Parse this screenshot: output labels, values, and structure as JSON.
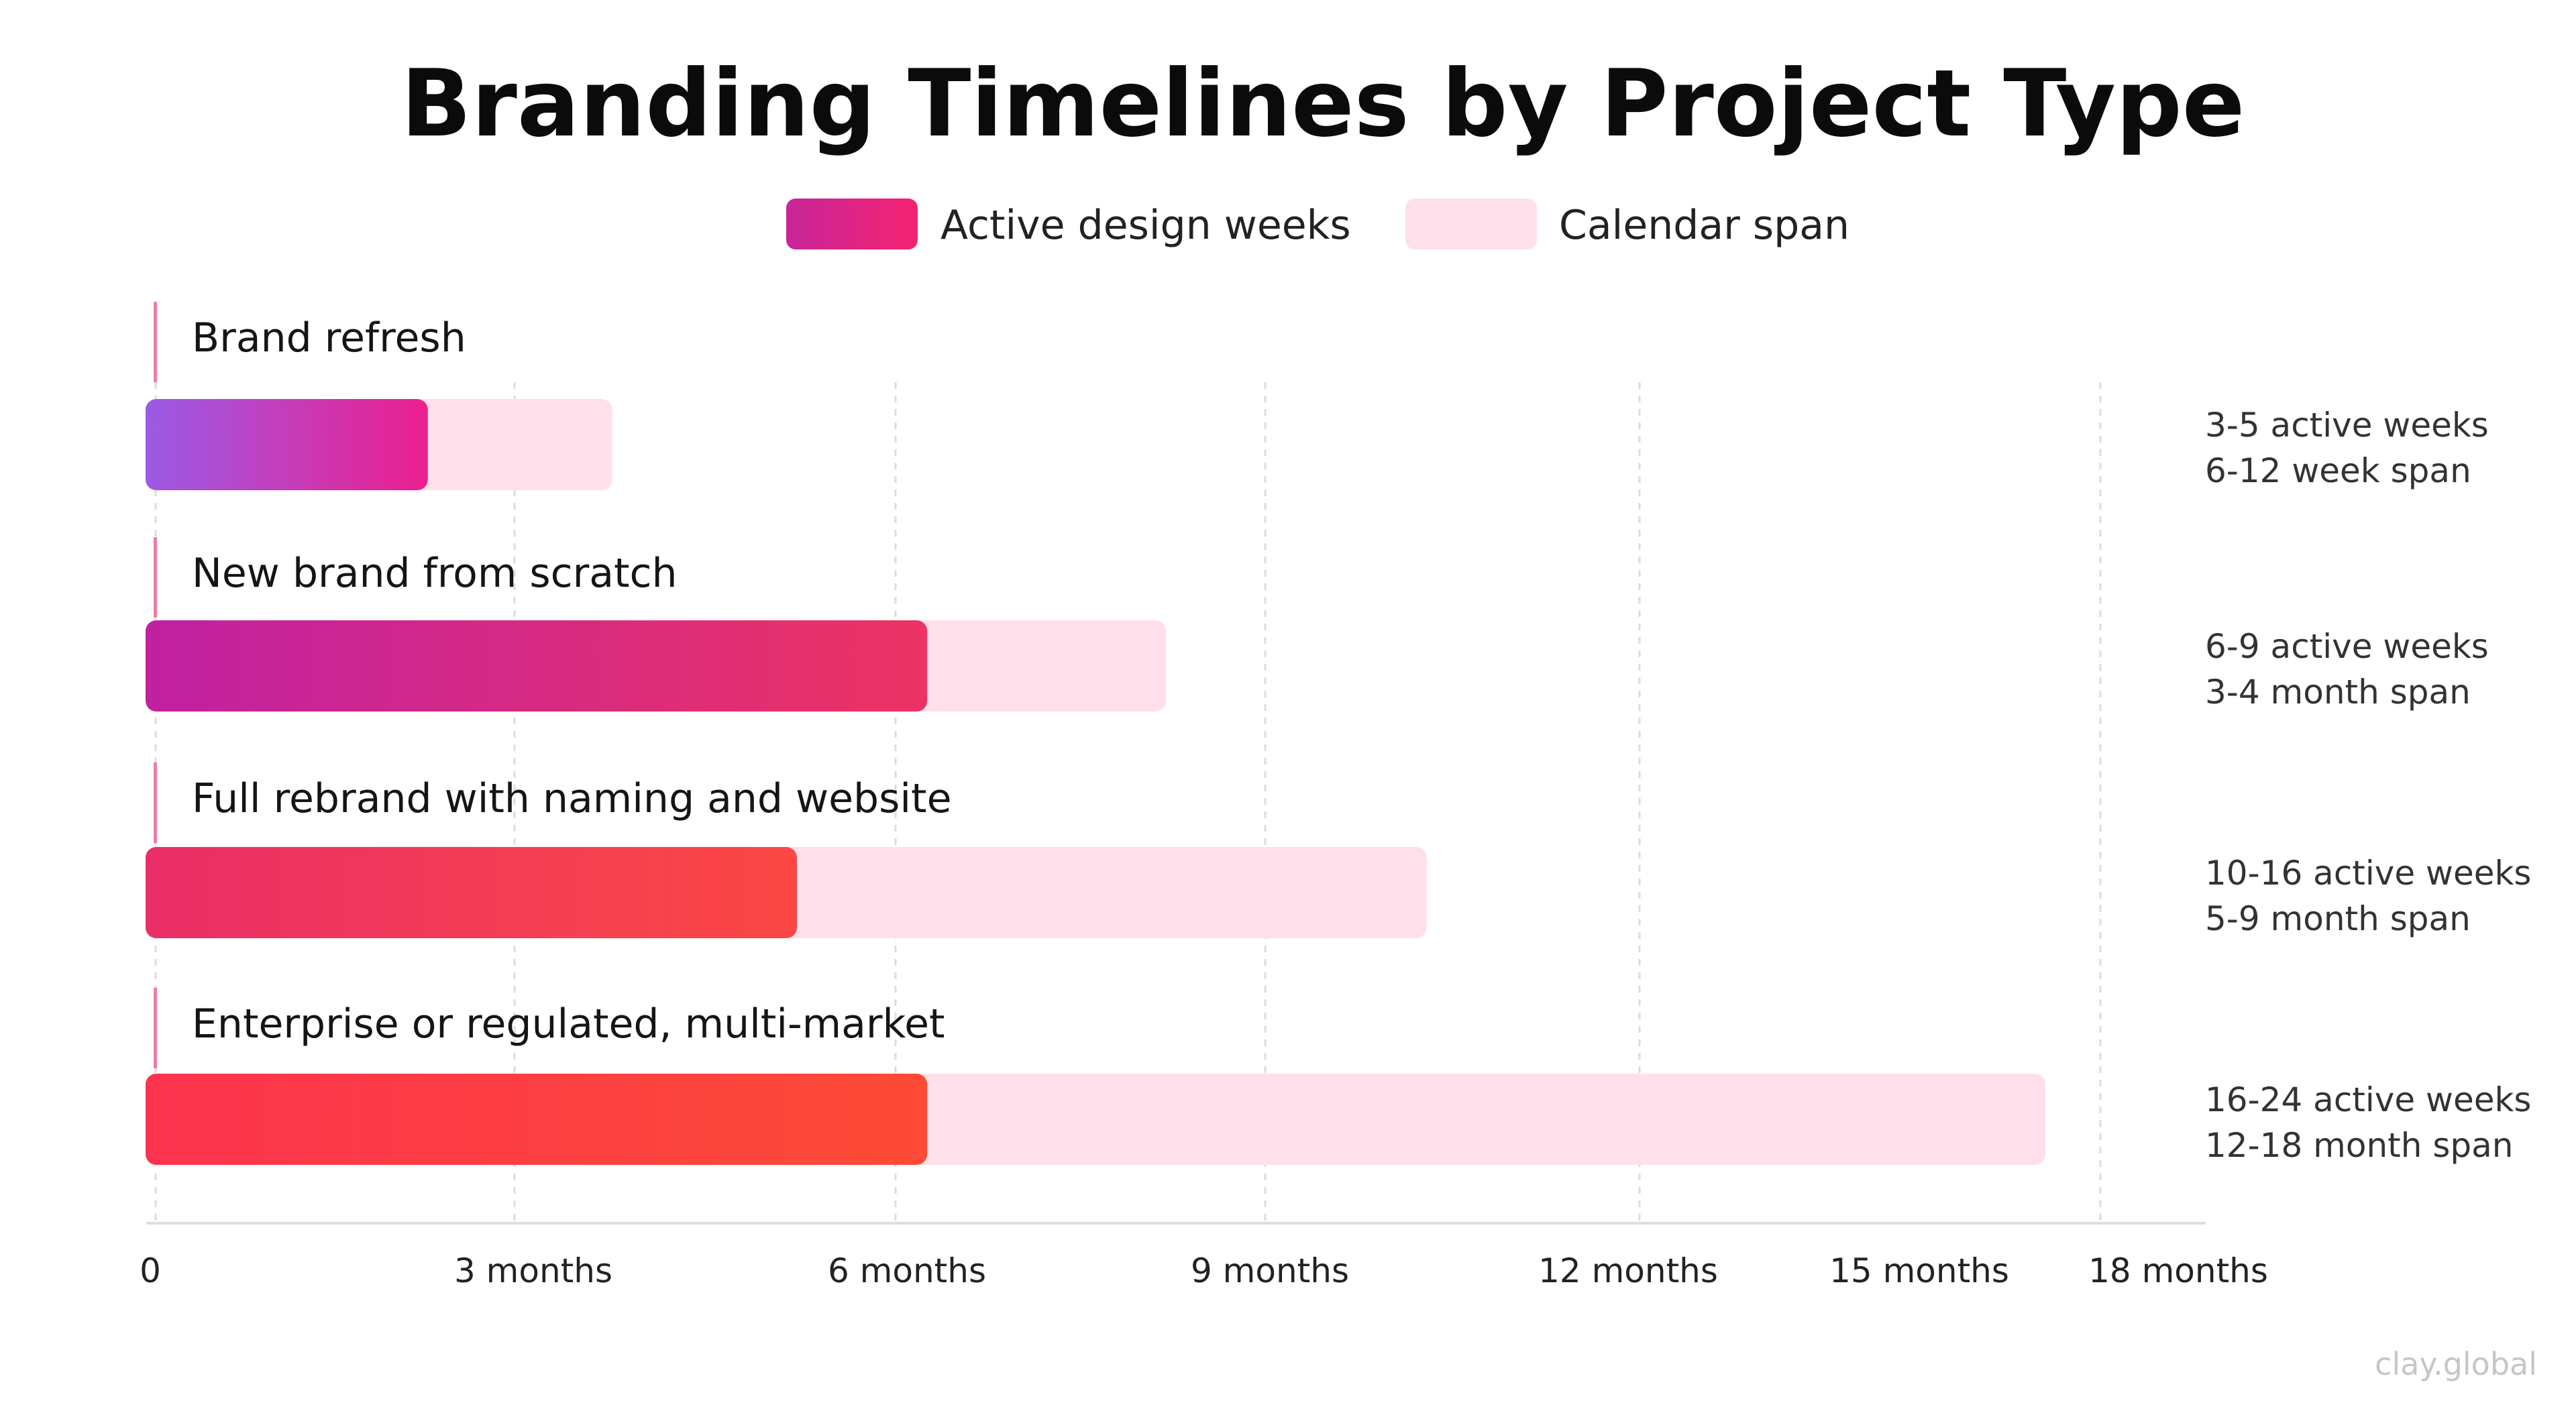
{
  "title": "Branding Timelines by Project Type",
  "watermark": "clay.global",
  "legend": [
    {
      "label": "Active design weeks",
      "colors": [
        "#c8259a",
        "#f4236f"
      ]
    },
    {
      "label": "Calendar span",
      "colors": [
        "#ffe0ea",
        "#ffe0ea"
      ]
    }
  ],
  "chart_data": {
    "type": "bar",
    "orientation": "horizontal",
    "title": "Branding Timelines by Project Type",
    "xlim": [
      0,
      18
    ],
    "x_ticks": [
      {
        "value": 0,
        "label": "0"
      },
      {
        "value": 3,
        "label": "3 months"
      },
      {
        "value": 6,
        "label": "6 months"
      },
      {
        "value": 9,
        "label": "9 months"
      },
      {
        "value": 12,
        "label": "12 months"
      },
      {
        "value": 15,
        "label": "15 months"
      },
      {
        "value": 18,
        "label": "18 months"
      }
    ],
    "grid": "vertical dashed",
    "legend_position": "top-center",
    "series": [
      {
        "name": "Active design weeks",
        "values": [
          2.6,
          7.2,
          6.0,
          7.2
        ]
      },
      {
        "name": "Calendar span",
        "values": [
          4.3,
          9.4,
          11.8,
          17.5
        ]
      }
    ],
    "categories": [
      {
        "label": "Brand refresh",
        "active_text": "3-5 active weeks",
        "span_text": "6-12 week span",
        "colors": [
          "#9b5be6",
          "#ec1f8e"
        ]
      },
      {
        "label": "New brand from scratch",
        "active_text": "6-9 active weeks",
        "span_text": "3-4 month span",
        "colors": [
          "#c021a2",
          "#ec3363"
        ]
      },
      {
        "label": "Full rebrand with naming and website",
        "active_text": "10-16 active weeks",
        "span_text": "5-9 month span",
        "colors": [
          "#ea2e68",
          "#fc4744"
        ]
      },
      {
        "label": "Enterprise or regulated, multi-market",
        "active_text": "16-24 active weeks",
        "span_text": "12-18 month span",
        "colors": [
          "#fb334e",
          "#fd4b36"
        ]
      }
    ],
    "span_color": "#ffe0ea"
  }
}
